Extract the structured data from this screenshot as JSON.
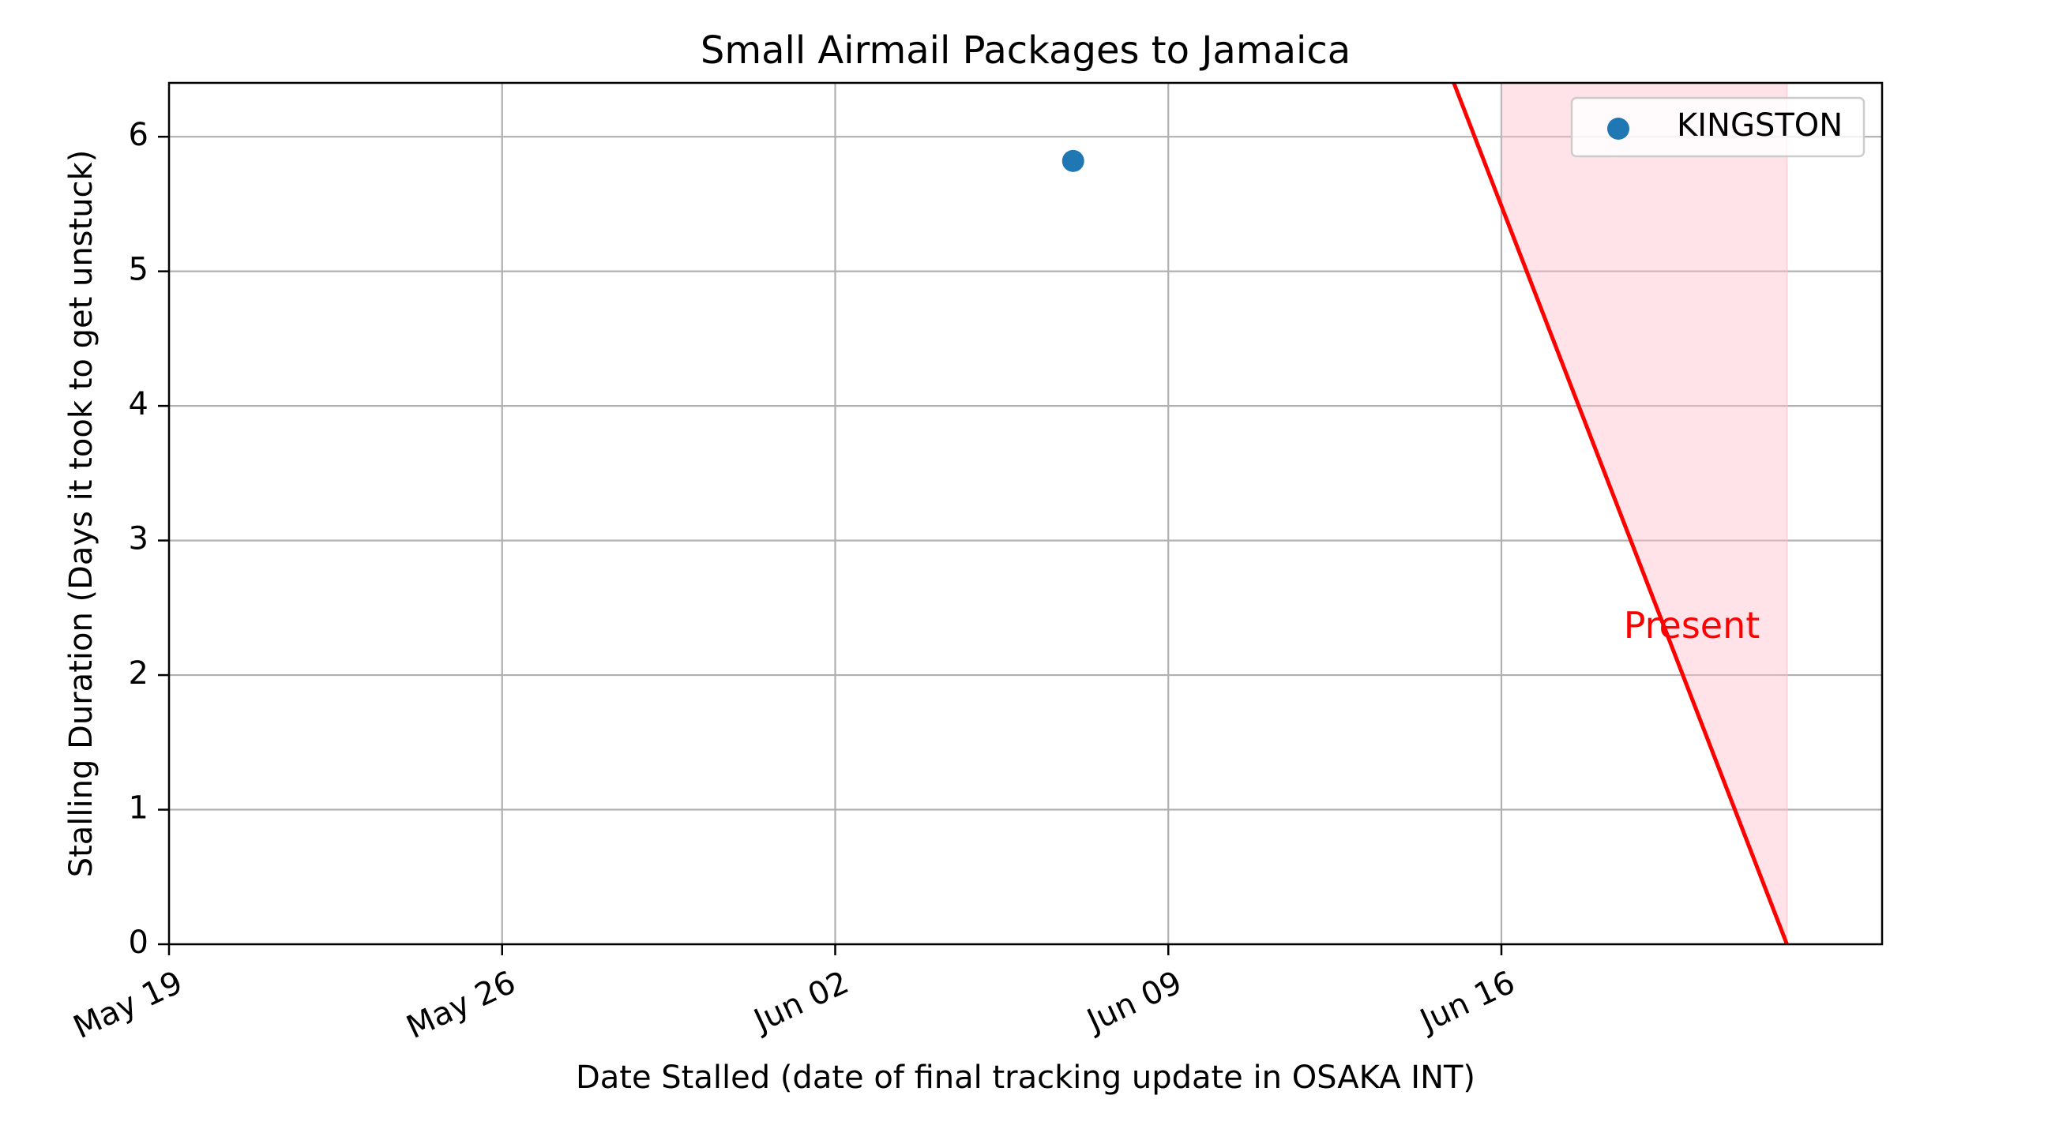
{
  "chart_data": {
    "type": "scatter",
    "title": "Small Airmail Packages to Jamaica",
    "xlabel": "Date Stalled (date of final tracking update in OSAKA INT)",
    "ylabel": "Stalling Duration (Days it took to get unstuck)",
    "x_axis": {
      "type": "date",
      "min": "2024-05-19",
      "max": "2024-06-24",
      "ticks": [
        "2024-05-19",
        "2024-05-26",
        "2024-06-02",
        "2024-06-09",
        "2024-06-16"
      ],
      "tick_labels": [
        "May 19",
        "May 26",
        "Jun 02",
        "Jun 09",
        "Jun 16"
      ]
    },
    "y_axis": {
      "min": 0,
      "max": 6.4,
      "ticks": [
        0,
        1,
        2,
        3,
        4,
        5,
        6
      ],
      "tick_labels": [
        "0",
        "1",
        "2",
        "3",
        "4",
        "5",
        "6"
      ]
    },
    "grid": true,
    "series": [
      {
        "name": "KINGSTON",
        "color": "#1f77b4",
        "points": [
          {
            "x": "2024-06-07",
            "y": 5.82
          }
        ]
      }
    ],
    "legend": {
      "position": "top-right",
      "entries": [
        "KINGSTON"
      ]
    },
    "present_line": {
      "label": "Present",
      "color": "#ff0000",
      "fill_color": "#ffc0cb",
      "points": [
        {
          "x": "2024-06-15",
          "y": 6.4
        },
        {
          "x": "2024-06-22",
          "y": 0
        }
      ],
      "shade_x_range": [
        "2024-06-16",
        "2024-06-22"
      ],
      "label_position": {
        "x": "2024-06-20",
        "y": 2.35
      }
    }
  }
}
